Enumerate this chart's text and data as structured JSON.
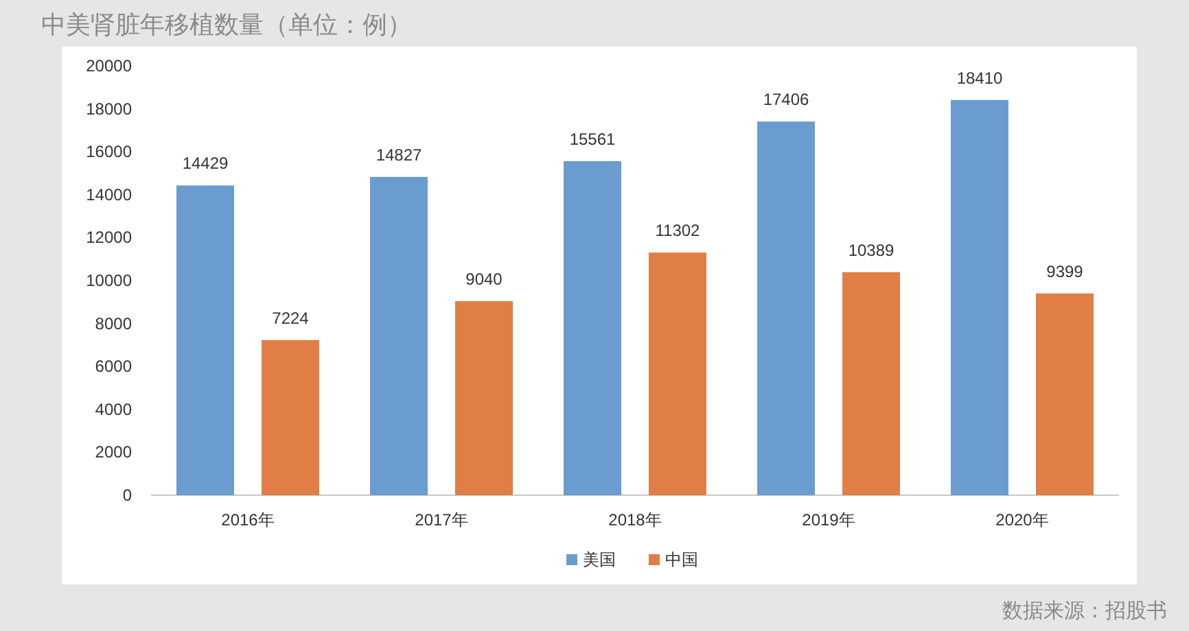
{
  "chart_data": {
    "type": "bar",
    "title": "中美肾脏年移植数量（单位：例）",
    "categories": [
      "2016年",
      "2017年",
      "2018年",
      "2019年",
      "2020年"
    ],
    "series": [
      {
        "name": "美国",
        "color": "#6a9ccf",
        "values": [
          14429,
          14827,
          15561,
          17406,
          18410
        ]
      },
      {
        "name": "中国",
        "color": "#e07e45",
        "values": [
          7224,
          9040,
          11302,
          10389,
          9399
        ]
      }
    ],
    "ylim": [
      0,
      20000
    ],
    "yticks": [
      0,
      2000,
      4000,
      6000,
      8000,
      10000,
      12000,
      14000,
      16000,
      18000,
      20000
    ],
    "data_labels": true,
    "legend": "bottom",
    "annotations": [
      "数据来源：招股书"
    ]
  }
}
